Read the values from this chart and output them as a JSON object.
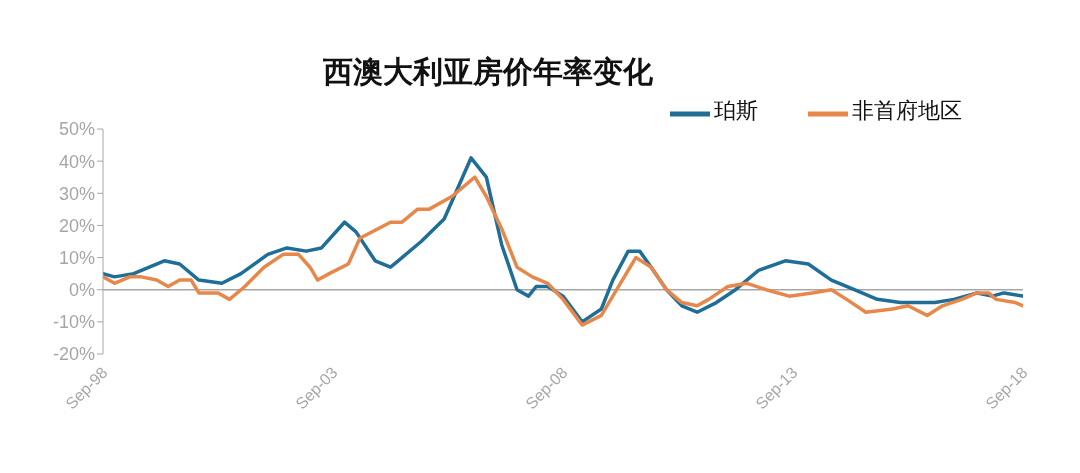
{
  "chart_data": {
    "type": "line",
    "title": "西澳大利亚房价年率变化",
    "xlim": [
      "1998-09",
      "2018-09"
    ],
    "xticks": [
      {
        "value": "1998-09",
        "label": "Sep-98"
      },
      {
        "value": "2003-09",
        "label": "Sep-03"
      },
      {
        "value": "2008-09",
        "label": "Sep-08"
      },
      {
        "value": "2013-09",
        "label": "Sep-13"
      },
      {
        "value": "2018-09",
        "label": "Sep-18"
      }
    ],
    "ylim": [
      -20,
      50
    ],
    "yticks": [
      {
        "value": -20,
        "label": "-20%"
      },
      {
        "value": -10,
        "label": "-10%"
      },
      {
        "value": 0,
        "label": "0%"
      },
      {
        "value": 10,
        "label": "10%"
      },
      {
        "value": 20,
        "label": "20%"
      },
      {
        "value": 30,
        "label": "30%"
      },
      {
        "value": 40,
        "label": "40%"
      },
      {
        "value": 50,
        "label": "50%"
      }
    ],
    "ref_lines": [
      {
        "axis": "y",
        "value": 0,
        "color": "#a6a6a6"
      }
    ],
    "grid": false,
    "legend": "top right",
    "marker": "none",
    "line_style": "solid",
    "series": [
      {
        "name": "珀斯",
        "color": "#1f6e97",
        "x": [
          "1998-09",
          "1998-12",
          "1999-05",
          "2000-01",
          "2000-05",
          "2000-10",
          "2001-04",
          "2001-09",
          "2002-04",
          "2002-09",
          "2003-02",
          "2003-06",
          "2003-12",
          "2004-03",
          "2004-08",
          "2004-12",
          "2005-02",
          "2005-08",
          "2006-02",
          "2006-09",
          "2007-01",
          "2007-05",
          "2007-09",
          "2007-12",
          "2008-02",
          "2008-05",
          "2008-09",
          "2009-02",
          "2009-07",
          "2009-10",
          "2010-02",
          "2010-05",
          "2010-08",
          "2010-12",
          "2011-04",
          "2011-08",
          "2012-01",
          "2012-06",
          "2012-12",
          "2013-07",
          "2014-01",
          "2014-07",
          "2015-01",
          "2015-07",
          "2016-01",
          "2016-10",
          "2017-03",
          "2017-09",
          "2018-01",
          "2018-04",
          "2018-09"
        ],
        "values": [
          5,
          4,
          5,
          9,
          8,
          3,
          2,
          5,
          11,
          13,
          12,
          13,
          21,
          18,
          9,
          7,
          9,
          15,
          22,
          41,
          35,
          14,
          0,
          -2,
          1,
          1,
          -2,
          -10,
          -6,
          3,
          12,
          12,
          7,
          0,
          -5,
          -7,
          -4,
          0,
          6,
          9,
          8,
          3,
          0,
          -3,
          -4,
          -4,
          -3,
          -1,
          -2,
          -1,
          -2
        ]
      },
      {
        "name": "非首府地区",
        "color": "#e8874a",
        "x": [
          "1998-09",
          "1998-12",
          "1999-04",
          "1999-07",
          "1999-11",
          "2000-02",
          "2000-05",
          "2000-08",
          "2000-10",
          "2001-03",
          "2001-06",
          "2001-10",
          "2002-03",
          "2002-08",
          "2002-12",
          "2003-03",
          "2003-05",
          "2003-08",
          "2004-01",
          "2004-04",
          "2004-12",
          "2005-03",
          "2005-07",
          "2005-10",
          "2006-04",
          "2006-10",
          "2007-01",
          "2007-05",
          "2007-09",
          "2008-01",
          "2008-05",
          "2008-09",
          "2009-02",
          "2009-07",
          "2009-11",
          "2010-04",
          "2010-08",
          "2010-12",
          "2011-04",
          "2011-08",
          "2011-11",
          "2012-04",
          "2012-09",
          "2013-02",
          "2013-08",
          "2014-02",
          "2014-07",
          "2014-11",
          "2015-04",
          "2015-11",
          "2016-03",
          "2016-08",
          "2016-12",
          "2017-05",
          "2017-09",
          "2017-12",
          "2018-02",
          "2018-07",
          "2018-09"
        ],
        "values": [
          4,
          2,
          4,
          4,
          3,
          1,
          3,
          3,
          -1,
          -1,
          -3,
          1,
          7,
          11,
          11,
          7,
          3,
          5,
          8,
          16,
          21,
          21,
          25,
          25,
          29,
          35,
          29,
          19,
          7,
          4,
          2,
          -3,
          -11,
          -8,
          0,
          10,
          7,
          0,
          -4,
          -5,
          -3,
          1,
          2,
          0,
          -2,
          -1,
          0,
          -3,
          -7,
          -6,
          -5,
          -8,
          -5,
          -3,
          -1,
          -1,
          -3,
          -4,
          -5
        ]
      }
    ]
  }
}
